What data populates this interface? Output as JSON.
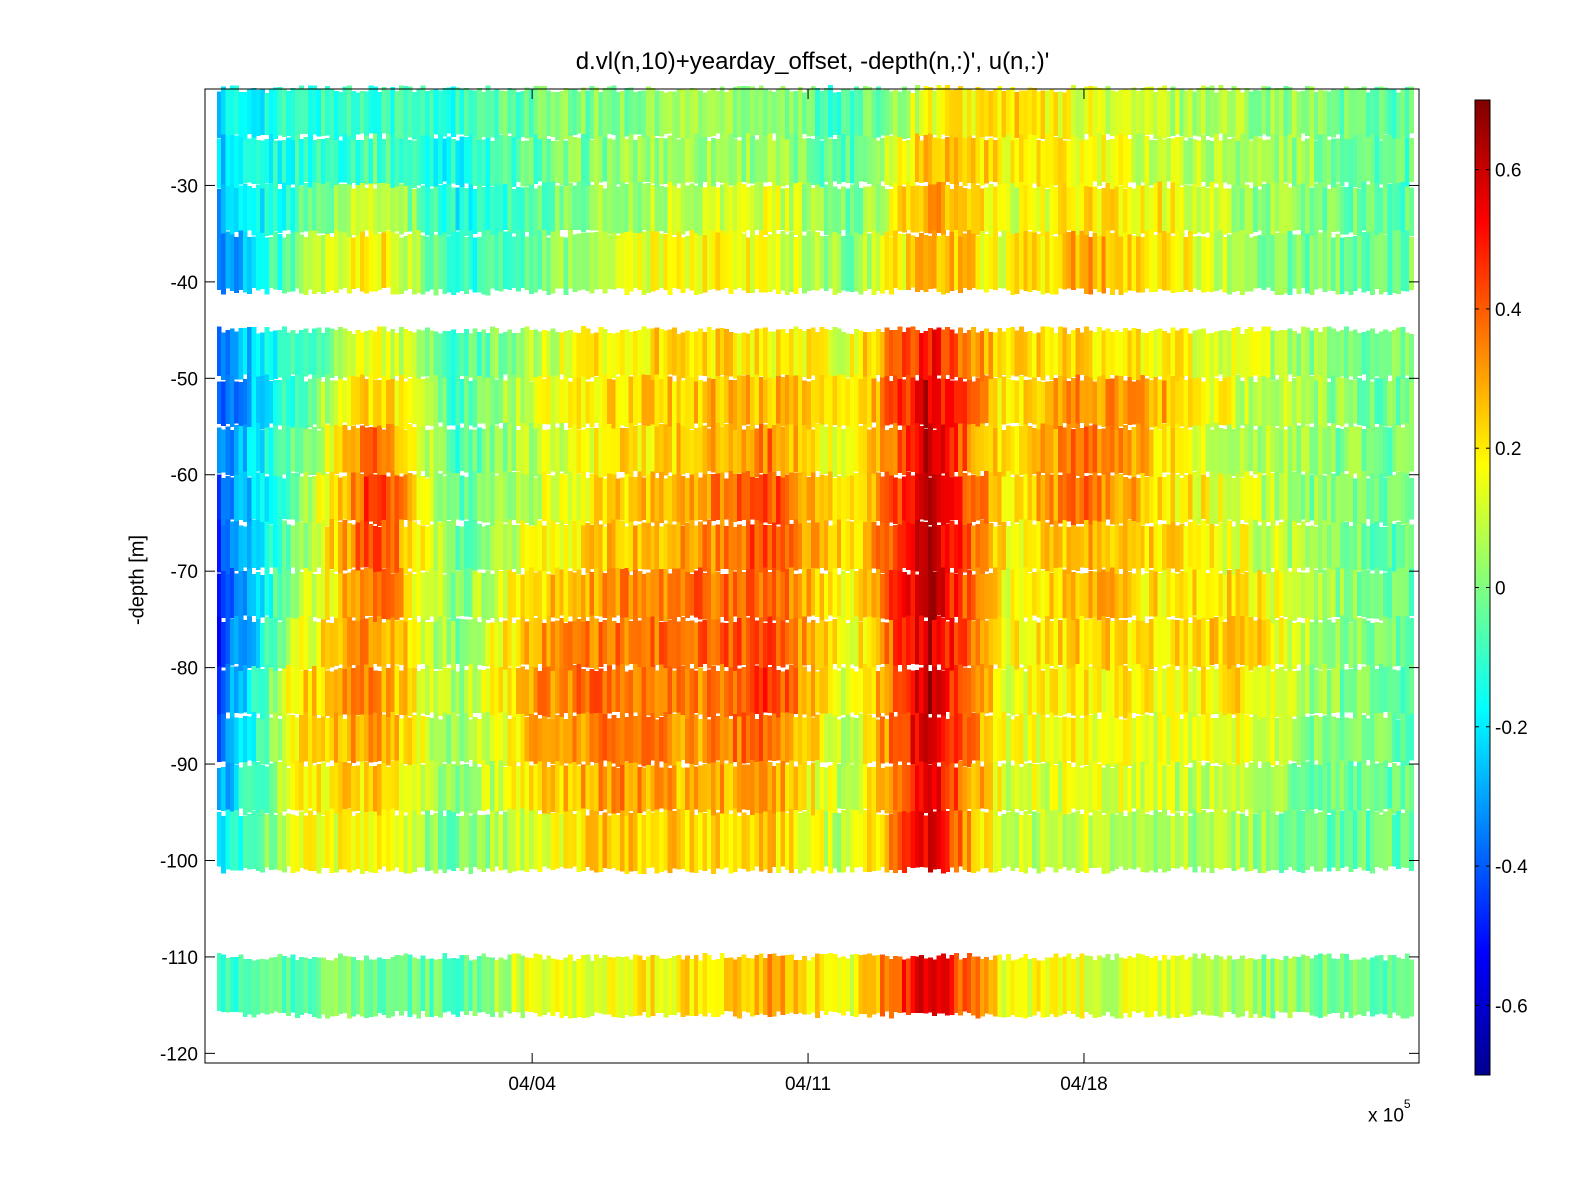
{
  "chart_data": {
    "type": "heatmap",
    "title": "d.vl(n,10)+yearday_offset, -depth(n,:)', u(n,:)'",
    "ylabel": "-depth [m]",
    "xlabel": "",
    "x_exponent_label": "x 10",
    "x_exponent_power": "5",
    "xlim_days": [
      -8.3,
      22.5
    ],
    "ylim": [
      -121,
      -20
    ],
    "x_ticks": [
      {
        "day": 0,
        "label": "04/04"
      },
      {
        "day": 7,
        "label": "04/11"
      },
      {
        "day": 14,
        "label": "04/18"
      }
    ],
    "y_ticks": [
      -30,
      -40,
      -50,
      -60,
      -70,
      -80,
      -90,
      -100,
      -110,
      -120
    ],
    "colorbar": {
      "clim": [
        -0.7,
        0.7
      ],
      "ticks": [
        0.6,
        0.4,
        0.2,
        0,
        -0.2,
        -0.4,
        -0.6
      ],
      "tick_labels": [
        "0.6",
        "0.4",
        "0.2",
        "0",
        "-0.2",
        "-0.4",
        "-0.6"
      ],
      "colormap": "jet"
    },
    "depth_bins": [
      {
        "top": -20,
        "bottom": -25
      },
      {
        "top": -25,
        "bottom": -30
      },
      {
        "top": -30,
        "bottom": -35
      },
      {
        "top": -35,
        "bottom": -41
      },
      {
        "top": -45,
        "bottom": -50
      },
      {
        "top": -50,
        "bottom": -55
      },
      {
        "top": -55,
        "bottom": -60
      },
      {
        "top": -60,
        "bottom": -65
      },
      {
        "top": -65,
        "bottom": -70
      },
      {
        "top": -70,
        "bottom": -75
      },
      {
        "top": -75,
        "bottom": -80
      },
      {
        "top": -80,
        "bottom": -85
      },
      {
        "top": -85,
        "bottom": -90
      },
      {
        "top": -90,
        "bottom": -95
      },
      {
        "top": -95,
        "bottom": -101
      },
      {
        "top": -110,
        "bottom": -116
      }
    ],
    "time_days": [
      -8,
      -6,
      -4,
      -2,
      0,
      2,
      4,
      6,
      8,
      10,
      12,
      14,
      16,
      18,
      20,
      22
    ],
    "u": [
      [
        -0.2,
        -0.12,
        -0.08,
        -0.12,
        -0.02,
        0.0,
        0.06,
        0.04,
        -0.1,
        0.16,
        0.22,
        0.14,
        0.08,
        0.06,
        0.0,
        -0.04
      ],
      [
        -0.24,
        -0.12,
        -0.06,
        -0.16,
        -0.04,
        0.02,
        0.06,
        0.04,
        -0.06,
        0.3,
        0.2,
        0.16,
        0.1,
        0.06,
        0.02,
        -0.06
      ],
      [
        -0.28,
        -0.08,
        0.14,
        -0.16,
        -0.04,
        0.04,
        0.1,
        0.14,
        -0.04,
        0.32,
        0.12,
        0.2,
        0.18,
        0.04,
        0.0,
        -0.06
      ],
      [
        -0.36,
        0.0,
        0.22,
        -0.14,
        -0.02,
        0.1,
        0.18,
        0.16,
        0.0,
        0.3,
        0.16,
        0.3,
        0.22,
        0.04,
        -0.02,
        -0.02
      ],
      [
        -0.34,
        -0.1,
        0.18,
        -0.1,
        0.08,
        0.2,
        0.24,
        0.2,
        0.14,
        0.52,
        0.2,
        0.24,
        0.18,
        0.12,
        0.02,
        -0.02
      ],
      [
        -0.4,
        -0.06,
        0.28,
        -0.1,
        0.12,
        0.22,
        0.26,
        0.28,
        0.14,
        0.6,
        0.18,
        0.34,
        0.28,
        0.1,
        0.04,
        -0.04
      ],
      [
        -0.38,
        -0.04,
        0.44,
        -0.08,
        0.08,
        0.2,
        0.24,
        0.36,
        0.1,
        0.6,
        0.16,
        0.4,
        0.22,
        0.08,
        0.02,
        -0.02
      ],
      [
        -0.42,
        -0.02,
        0.5,
        -0.06,
        0.1,
        0.22,
        0.3,
        0.44,
        0.16,
        0.62,
        0.2,
        0.38,
        0.22,
        0.12,
        0.0,
        -0.02
      ],
      [
        -0.44,
        0.02,
        0.48,
        -0.04,
        0.16,
        0.26,
        0.3,
        0.44,
        0.2,
        0.64,
        0.18,
        0.3,
        0.24,
        0.14,
        0.02,
        -0.04
      ],
      [
        -0.46,
        0.06,
        0.4,
        -0.02,
        0.22,
        0.32,
        0.38,
        0.4,
        0.18,
        0.64,
        0.16,
        0.28,
        0.2,
        0.22,
        0.04,
        -0.04
      ],
      [
        -0.48,
        0.12,
        0.36,
        0.0,
        0.3,
        0.36,
        0.38,
        0.42,
        0.14,
        0.6,
        0.16,
        0.24,
        0.2,
        0.26,
        0.04,
        -0.04
      ],
      [
        -0.42,
        0.22,
        0.34,
        0.02,
        0.32,
        0.4,
        0.34,
        0.46,
        0.1,
        0.64,
        0.14,
        0.2,
        0.16,
        0.22,
        0.02,
        -0.04
      ],
      [
        -0.38,
        0.2,
        0.32,
        0.0,
        0.26,
        0.38,
        0.3,
        0.4,
        0.08,
        0.62,
        0.14,
        0.18,
        0.14,
        0.16,
        0.0,
        -0.04
      ],
      [
        -0.3,
        0.18,
        0.24,
        0.0,
        0.2,
        0.34,
        0.26,
        0.32,
        0.06,
        0.58,
        0.12,
        0.14,
        0.1,
        0.08,
        -0.02,
        -0.04
      ],
      [
        -0.24,
        0.16,
        0.16,
        -0.04,
        0.14,
        0.26,
        0.22,
        0.24,
        0.06,
        0.56,
        0.08,
        0.1,
        0.06,
        0.04,
        -0.04,
        -0.04
      ],
      [
        -0.12,
        -0.04,
        0.0,
        -0.06,
        0.14,
        0.18,
        0.2,
        0.3,
        0.14,
        0.6,
        0.16,
        0.14,
        0.1,
        0.04,
        -0.02,
        -0.04
      ]
    ]
  }
}
